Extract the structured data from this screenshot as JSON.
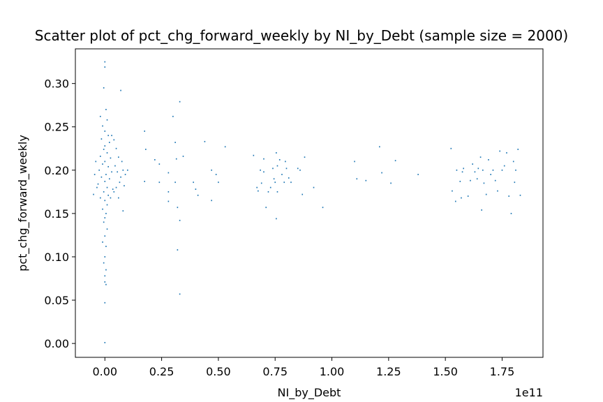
{
  "chart_data": {
    "type": "scatter",
    "title": "Scatter plot of pct_chg_forward_weekly by NI_by_Debt (sample size = 2000)",
    "xlabel": "NI_by_Debt",
    "ylabel": "pct_chg_forward_weekly",
    "x_offset_label": "1e11",
    "xlim": [
      -0.13,
      1.93
    ],
    "ylim": [
      -0.016,
      0.34
    ],
    "x_ticks": [
      0.0,
      0.25,
      0.5,
      0.75,
      1.0,
      1.25,
      1.5,
      1.75
    ],
    "x_tick_labels": [
      "0.00",
      "0.25",
      "0.50",
      "0.75",
      "1.00",
      "1.25",
      "1.50",
      "1.75"
    ],
    "y_ticks": [
      0.0,
      0.05,
      0.1,
      0.15,
      0.2,
      0.25,
      0.3
    ],
    "y_tick_labels": [
      "0.00",
      "0.05",
      "0.10",
      "0.15",
      "0.20",
      "0.25",
      "0.30"
    ],
    "grid": false,
    "marker_color": "#1f77b4",
    "series": [
      {
        "points": [
          [
            0.0,
            0.325
          ],
          [
            0.0,
            0.319
          ],
          [
            -0.005,
            0.295
          ],
          [
            0.005,
            0.27
          ],
          [
            -0.02,
            0.262
          ],
          [
            0.01,
            0.258
          ],
          [
            -0.01,
            0.251
          ],
          [
            0.0,
            0.245
          ],
          [
            0.015,
            0.24
          ],
          [
            -0.015,
            0.236
          ],
          [
            0.02,
            0.232
          ],
          [
            0.0,
            0.228
          ],
          [
            -0.005,
            0.224
          ],
          [
            0.01,
            0.22
          ],
          [
            -0.02,
            0.216
          ],
          [
            0.025,
            0.214
          ],
          [
            0.0,
            0.21
          ],
          [
            -0.01,
            0.207
          ],
          [
            0.015,
            0.204
          ],
          [
            -0.025,
            0.2
          ],
          [
            0.03,
            0.198
          ],
          [
            0.005,
            0.195
          ],
          [
            -0.015,
            0.192
          ],
          [
            0.02,
            0.19
          ],
          [
            0.0,
            0.187
          ],
          [
            -0.03,
            0.184
          ],
          [
            0.01,
            0.18
          ],
          [
            0.035,
            0.178
          ],
          [
            -0.005,
            0.175
          ],
          [
            0.015,
            0.171
          ],
          [
            -0.02,
            0.168
          ],
          [
            0.0,
            0.165
          ],
          [
            0.01,
            0.16
          ],
          [
            -0.01,
            0.155
          ],
          [
            0.005,
            0.15
          ],
          [
            0.0,
            0.145
          ],
          [
            -0.005,
            0.14
          ],
          [
            0.01,
            0.132
          ],
          [
            0.0,
            0.124
          ],
          [
            -0.01,
            0.117
          ],
          [
            0.005,
            0.112
          ],
          [
            0.0,
            0.1
          ],
          [
            -0.005,
            0.093
          ],
          [
            0.005,
            0.085
          ],
          [
            0.0,
            0.078
          ],
          [
            0.0,
            0.071
          ],
          [
            0.005,
            0.068
          ],
          [
            0.0,
            0.047
          ],
          [
            0.0,
            0.001
          ],
          [
            0.04,
            0.235
          ],
          [
            0.05,
            0.225
          ],
          [
            0.06,
            0.215
          ],
          [
            0.045,
            0.205
          ],
          [
            0.055,
            0.198
          ],
          [
            0.07,
            0.192
          ],
          [
            0.065,
            0.186
          ],
          [
            0.05,
            0.18
          ],
          [
            0.04,
            0.175
          ],
          [
            0.075,
            0.21
          ],
          [
            0.08,
            0.2
          ],
          [
            0.09,
            0.195
          ],
          [
            0.085,
            0.182
          ],
          [
            0.1,
            0.2
          ],
          [
            0.07,
            0.292
          ],
          [
            0.08,
            0.153
          ],
          [
            0.06,
            0.168
          ],
          [
            -0.04,
            0.21
          ],
          [
            -0.045,
            0.195
          ],
          [
            -0.035,
            0.18
          ],
          [
            -0.05,
            0.172
          ],
          [
            0.03,
            0.24
          ],
          [
            0.025,
            0.168
          ],
          [
            0.175,
            0.245
          ],
          [
            0.18,
            0.224
          ],
          [
            0.175,
            0.187
          ],
          [
            0.22,
            0.212
          ],
          [
            0.24,
            0.207
          ],
          [
            0.24,
            0.186
          ],
          [
            0.28,
            0.197
          ],
          [
            0.28,
            0.175
          ],
          [
            0.28,
            0.164
          ],
          [
            0.3,
            0.262
          ],
          [
            0.31,
            0.232
          ],
          [
            0.33,
            0.279
          ],
          [
            0.345,
            0.216
          ],
          [
            0.315,
            0.213
          ],
          [
            0.31,
            0.186
          ],
          [
            0.32,
            0.157
          ],
          [
            0.33,
            0.142
          ],
          [
            0.32,
            0.108
          ],
          [
            0.33,
            0.057
          ],
          [
            0.39,
            0.186
          ],
          [
            0.4,
            0.178
          ],
          [
            0.41,
            0.171
          ],
          [
            0.44,
            0.233
          ],
          [
            0.47,
            0.2
          ],
          [
            0.47,
            0.165
          ],
          [
            0.49,
            0.195
          ],
          [
            0.5,
            0.186
          ],
          [
            0.53,
            0.227
          ],
          [
            0.655,
            0.217
          ],
          [
            0.67,
            0.18
          ],
          [
            0.675,
            0.176
          ],
          [
            0.685,
            0.2
          ],
          [
            0.69,
            0.185
          ],
          [
            0.7,
            0.213
          ],
          [
            0.7,
            0.198
          ],
          [
            0.71,
            0.157
          ],
          [
            0.72,
            0.175
          ],
          [
            0.73,
            0.18
          ],
          [
            0.74,
            0.202
          ],
          [
            0.745,
            0.19
          ],
          [
            0.75,
            0.186
          ],
          [
            0.755,
            0.22
          ],
          [
            0.76,
            0.205
          ],
          [
            0.76,
            0.175
          ],
          [
            0.755,
            0.144
          ],
          [
            0.77,
            0.212
          ],
          [
            0.78,
            0.195
          ],
          [
            0.79,
            0.186
          ],
          [
            0.795,
            0.21
          ],
          [
            0.8,
            0.202
          ],
          [
            0.81,
            0.191
          ],
          [
            0.82,
            0.186
          ],
          [
            0.85,
            0.202
          ],
          [
            0.86,
            0.2
          ],
          [
            0.87,
            0.172
          ],
          [
            0.88,
            0.215
          ],
          [
            0.92,
            0.18
          ],
          [
            0.96,
            0.157
          ],
          [
            1.1,
            0.21
          ],
          [
            1.11,
            0.19
          ],
          [
            1.15,
            0.188
          ],
          [
            1.21,
            0.227
          ],
          [
            1.22,
            0.197
          ],
          [
            1.26,
            0.185
          ],
          [
            1.28,
            0.211
          ],
          [
            1.38,
            0.195
          ],
          [
            1.525,
            0.225
          ],
          [
            1.53,
            0.176
          ],
          [
            1.545,
            0.164
          ],
          [
            1.55,
            0.2
          ],
          [
            1.565,
            0.187
          ],
          [
            1.57,
            0.168
          ],
          [
            1.575,
            0.198
          ],
          [
            1.58,
            0.202
          ],
          [
            1.6,
            0.17
          ],
          [
            1.61,
            0.188
          ],
          [
            1.62,
            0.207
          ],
          [
            1.63,
            0.198
          ],
          [
            1.64,
            0.19
          ],
          [
            1.645,
            0.202
          ],
          [
            1.655,
            0.215
          ],
          [
            1.66,
            0.154
          ],
          [
            1.665,
            0.2
          ],
          [
            1.67,
            0.185
          ],
          [
            1.68,
            0.172
          ],
          [
            1.69,
            0.212
          ],
          [
            1.7,
            0.195
          ],
          [
            1.71,
            0.2
          ],
          [
            1.72,
            0.188
          ],
          [
            1.73,
            0.176
          ],
          [
            1.74,
            0.222
          ],
          [
            1.75,
            0.2
          ],
          [
            1.76,
            0.205
          ],
          [
            1.77,
            0.22
          ],
          [
            1.78,
            0.17
          ],
          [
            1.79,
            0.15
          ],
          [
            1.8,
            0.21
          ],
          [
            1.805,
            0.186
          ],
          [
            1.82,
            0.224
          ],
          [
            1.83,
            0.171
          ],
          [
            1.81,
            0.2
          ]
        ]
      }
    ]
  }
}
